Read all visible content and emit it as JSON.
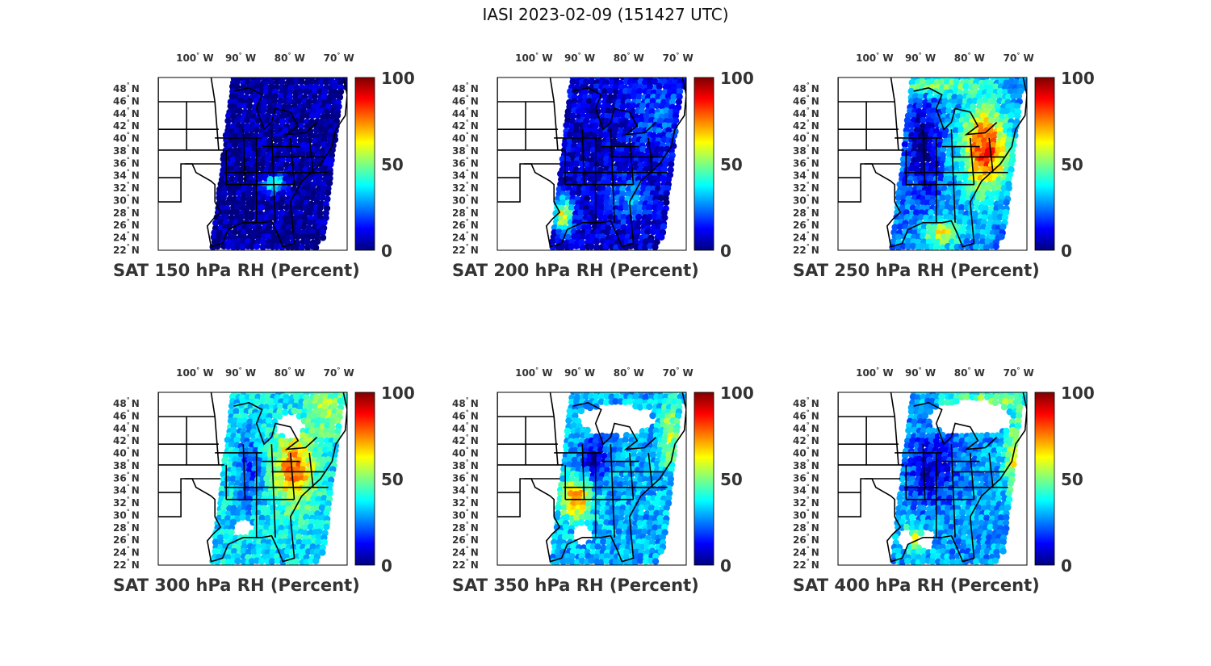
{
  "figure": {
    "title": "IASI 2023-02-09 (151427 UTC)"
  },
  "axes": {
    "lon_ticks": [
      "100",
      "90",
      "80",
      "70"
    ],
    "lon_suffix": "W",
    "lat_ticks": [
      "48",
      "46",
      "44",
      "42",
      "40",
      "38",
      "36",
      "34",
      "32",
      "30",
      "28",
      "26",
      "24",
      "22"
    ],
    "lat_suffix": "N",
    "degree_symbol": "°"
  },
  "colorbar": {
    "ticks": [
      "100",
      "50",
      "0"
    ],
    "range": [
      0,
      100
    ],
    "colormap": "jet",
    "colors": [
      "#00007f",
      "#0000ff",
      "#007fff",
      "#00ffff",
      "#7fff7f",
      "#ffff00",
      "#ff7f00",
      "#ff0000",
      "#7f0000"
    ]
  },
  "colors": {
    "background": "#ffffff",
    "land_outline": "#000000",
    "text": "#333333"
  },
  "panels": [
    {
      "title": "SAT 150 hPa RH (Percent)",
      "level_hpa": 150,
      "character": "mostly very dry, small moist patch over southeast"
    },
    {
      "title": "SAT 200 hPa RH (Percent)",
      "level_hpa": 200,
      "character": "dry with moist streak along Gulf coast"
    },
    {
      "title": "SAT 250 hPa RH (Percent)",
      "level_hpa": 250,
      "character": "very moist over mid-Atlantic and east"
    },
    {
      "title": "SAT 300 hPa RH (Percent)",
      "level_hpa": 300,
      "character": "moist band over east, mixed elsewhere"
    },
    {
      "title": "SAT 350 hPa RH (Percent)",
      "level_hpa": 350,
      "character": "mixed, moist band in southeast"
    },
    {
      "title": "SAT 400 hPa RH (Percent)",
      "level_hpa": 400,
      "character": "drier core, moist edges"
    }
  ]
}
